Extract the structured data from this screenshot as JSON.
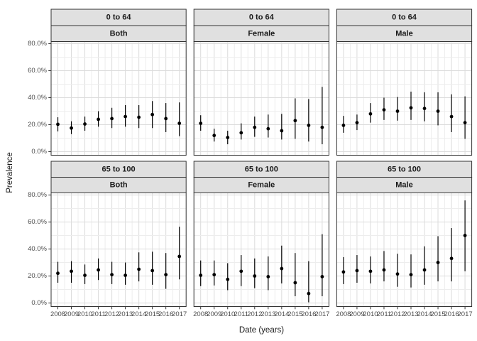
{
  "figure": {
    "background": "#ffffff"
  },
  "axes": {
    "x_title": "Date (years)",
    "y_title": "Prevalence",
    "y_tick_labels": [
      "0.0%",
      "20.0%",
      "40.0%",
      "60.0%",
      "80.0%"
    ],
    "y_tick_values": [
      0,
      20,
      40,
      60,
      80
    ],
    "x_tick_labels": [
      "2008",
      "2009",
      "2010",
      "2011",
      "2012",
      "2013",
      "2014",
      "2015",
      "2016",
      "2017"
    ]
  },
  "colors": {
    "strip_fill": "#e0e0e0",
    "strip_border": "#333333",
    "panel_border": "#333333",
    "grid_major": "#dbdbdb",
    "grid_minor": "#ededed",
    "tick_mark": "#333333",
    "tick_text": "#4d4d4d",
    "strip_text": "#1a1a1a",
    "point": "#000000"
  },
  "chart_data": {
    "type": "pointrange",
    "description": "Faceted point estimates with vertical confidence-interval bars (2 age-group rows x 3 sex columns)",
    "xlabel": "Date (years)",
    "ylabel": "Prevalence",
    "x": [
      2008,
      2009,
      2010,
      2011,
      2012,
      2013,
      2014,
      2015,
      2016,
      2017
    ],
    "ylim": [
      0,
      80
    ],
    "y_unit": "percent",
    "grid": "on",
    "legend": "none",
    "facet_rows": [
      "0 to 64",
      "65 to 100"
    ],
    "facet_cols": [
      "Both",
      "Female",
      "Male"
    ],
    "panels": [
      {
        "age_group": "0 to 64",
        "sex": "Both",
        "values": [
          20.3,
          17.5,
          20.5,
          24,
          24.5,
          26,
          25.5,
          27.5,
          24.5,
          21
        ],
        "lower": [
          15,
          13,
          15.5,
          18.5,
          17.5,
          18.5,
          17.5,
          17.5,
          14.5,
          11.5
        ],
        "upper": [
          25.5,
          22.5,
          26,
          30,
          32.5,
          34.5,
          34.5,
          37.5,
          36,
          36.5
        ]
      },
      {
        "age_group": "0 to 64",
        "sex": "Female",
        "values": [
          21,
          12,
          10.5,
          14,
          18,
          17,
          15.5,
          23,
          19.5,
          18
        ],
        "lower": [
          15.5,
          7.5,
          5.5,
          9,
          11,
          10.5,
          9,
          9.5,
          7.5,
          5.5
        ],
        "upper": [
          27,
          17,
          15.5,
          21,
          26,
          27.5,
          28,
          39.5,
          39,
          48
        ]
      },
      {
        "age_group": "0 to 64",
        "sex": "Male",
        "values": [
          19.5,
          21.5,
          28,
          31,
          30,
          32.5,
          32,
          30,
          26,
          21.5
        ],
        "lower": [
          14,
          16,
          21.5,
          23.5,
          23,
          23.5,
          22.5,
          19.5,
          14.5,
          9.5
        ],
        "upper": [
          26.5,
          27.5,
          36,
          40,
          40.5,
          44.5,
          44,
          44,
          42.5,
          41
        ]
      },
      {
        "age_group": "65 to 100",
        "sex": "Both",
        "values": [
          22,
          23.5,
          20.5,
          24.5,
          21,
          20.5,
          25,
          24,
          21,
          34.5
        ],
        "lower": [
          15,
          15,
          14,
          17,
          14,
          13.5,
          16,
          13.5,
          10.5,
          17.5
        ],
        "upper": [
          30.5,
          31,
          28.5,
          33,
          30.5,
          30,
          37.5,
          38,
          37,
          56.5
        ]
      },
      {
        "age_group": "65 to 100",
        "sex": "Female",
        "values": [
          20.5,
          21,
          17.5,
          23.5,
          20,
          19.5,
          25.5,
          15,
          7,
          19.5
        ],
        "lower": [
          12.5,
          13,
          9.5,
          12.5,
          11,
          9.5,
          14.5,
          5,
          0.5,
          5
        ],
        "upper": [
          31.5,
          31.5,
          29.5,
          35.5,
          33,
          34.5,
          42.5,
          37,
          31,
          51
        ]
      },
      {
        "age_group": "65 to 100",
        "sex": "Male",
        "values": [
          23,
          24,
          23.5,
          24.5,
          21.5,
          21,
          24.5,
          30,
          33,
          50
        ],
        "lower": [
          14,
          15,
          14.5,
          16,
          12,
          11.5,
          13.5,
          16,
          16,
          23.5
        ],
        "upper": [
          34,
          35.5,
          34.5,
          38.5,
          36.5,
          36,
          42,
          49.5,
          55.5,
          76
        ]
      }
    ]
  }
}
